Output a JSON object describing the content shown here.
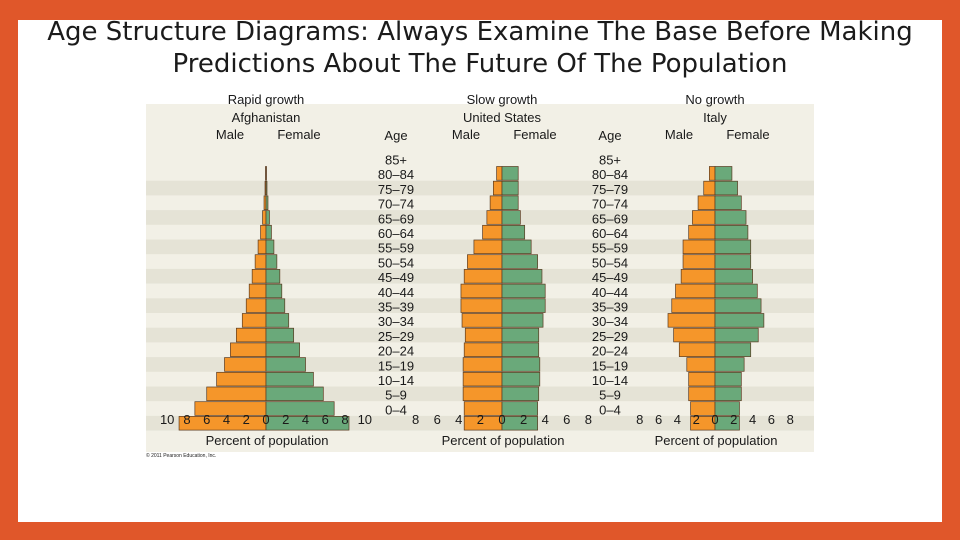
{
  "title_lines": [
    "Age Structure Diagrams: Always Examine The Base Before Making",
    "Predictions About The Future Of The Population"
  ],
  "copyright": "© 2011 Pearson Education, Inc.",
  "colors": {
    "background": "#e0572a",
    "male": "#f5962a",
    "female": "#6aa97a",
    "band_even": "#f2f0e6",
    "band_odd": "#e5e3d6"
  },
  "chart_data": [
    {
      "type": "bar",
      "subtype": "population-pyramid",
      "title_lines": [
        "Rapid growth",
        "Afghanistan"
      ],
      "legend": {
        "male": "Male",
        "female": "Female"
      },
      "age_axis_label": "Age",
      "categories": [
        "85+",
        "80–84",
        "75–79",
        "70–74",
        "65–69",
        "60–64",
        "55–59",
        "50–54",
        "45–49",
        "40–44",
        "35–39",
        "30–34",
        "25–29",
        "20–24",
        "15–19",
        "10–14",
        "5–9",
        "0–4"
      ],
      "series": [
        {
          "name": "Male",
          "values": [
            0.05,
            0.1,
            0.2,
            0.35,
            0.55,
            0.8,
            1.1,
            1.4,
            1.7,
            2.0,
            2.4,
            3.0,
            3.6,
            4.2,
            5.0,
            6.0,
            7.2,
            8.8
          ]
        },
        {
          "name": "Female",
          "values": [
            0.05,
            0.1,
            0.2,
            0.35,
            0.55,
            0.8,
            1.1,
            1.4,
            1.6,
            1.9,
            2.3,
            2.8,
            3.4,
            4.0,
            4.8,
            5.8,
            6.9,
            8.4
          ]
        }
      ],
      "x_ticks": [
        "10",
        "8",
        "6",
        "4",
        "2",
        "0",
        "2",
        "4",
        "6",
        "8",
        "10"
      ],
      "xlabel": "Percent of population",
      "xlim": [
        -10,
        10
      ]
    },
    {
      "type": "bar",
      "subtype": "population-pyramid",
      "title_lines": [
        "Slow growth",
        "United States"
      ],
      "legend": {
        "male": "Male",
        "female": "Female"
      },
      "age_axis_label": "Age",
      "categories": [
        "85+",
        "80–84",
        "75–79",
        "70–74",
        "65–69",
        "60–64",
        "55–59",
        "50–54",
        "45–49",
        "40–44",
        "35–39",
        "30–34",
        "25–29",
        "20–24",
        "15–19",
        "10–14",
        "5–9",
        "0–4"
      ],
      "series": [
        {
          "name": "Male",
          "values": [
            0.5,
            0.8,
            1.1,
            1.4,
            1.8,
            2.6,
            3.2,
            3.5,
            3.8,
            3.8,
            3.7,
            3.4,
            3.5,
            3.6,
            3.6,
            3.6,
            3.5,
            3.5
          ]
        },
        {
          "name": "Female",
          "values": [
            1.5,
            1.5,
            1.5,
            1.7,
            2.1,
            2.7,
            3.3,
            3.7,
            4.0,
            4.0,
            3.8,
            3.4,
            3.4,
            3.5,
            3.5,
            3.4,
            3.3,
            3.3
          ]
        }
      ],
      "x_ticks": [
        "8",
        "6",
        "4",
        "2",
        "0",
        "2",
        "4",
        "6",
        "8"
      ],
      "xlabel": "Percent of population",
      "xlim": [
        -8,
        8
      ]
    },
    {
      "type": "bar",
      "subtype": "population-pyramid",
      "title_lines": [
        "No growth",
        "Italy"
      ],
      "legend": {
        "male": "Male",
        "female": "Female"
      },
      "age_axis_label": "Age",
      "categories": [
        "85+",
        "80–84",
        "75–79",
        "70–74",
        "65–69",
        "60–64",
        "55–59",
        "50–54",
        "45–49",
        "40–44",
        "35–39",
        "30–34",
        "25–29",
        "20–24",
        "15–19",
        "10–14",
        "5–9",
        "0–4"
      ],
      "series": [
        {
          "name": "Male",
          "values": [
            0.6,
            1.2,
            1.8,
            2.4,
            2.8,
            3.4,
            3.4,
            3.6,
            4.2,
            4.6,
            5.0,
            4.4,
            3.8,
            3.0,
            2.8,
            2.8,
            2.6,
            2.6
          ]
        },
        {
          "name": "Female",
          "values": [
            1.8,
            2.4,
            2.8,
            3.3,
            3.5,
            3.8,
            3.8,
            4.0,
            4.5,
            4.9,
            5.2,
            4.6,
            3.8,
            3.1,
            2.8,
            2.8,
            2.6,
            2.6
          ]
        }
      ],
      "x_ticks": [
        "8",
        "6",
        "4",
        "2",
        "0",
        "2",
        "4",
        "6",
        "8"
      ],
      "xlabel": "Percent of population",
      "xlim": [
        -8,
        8
      ]
    }
  ]
}
